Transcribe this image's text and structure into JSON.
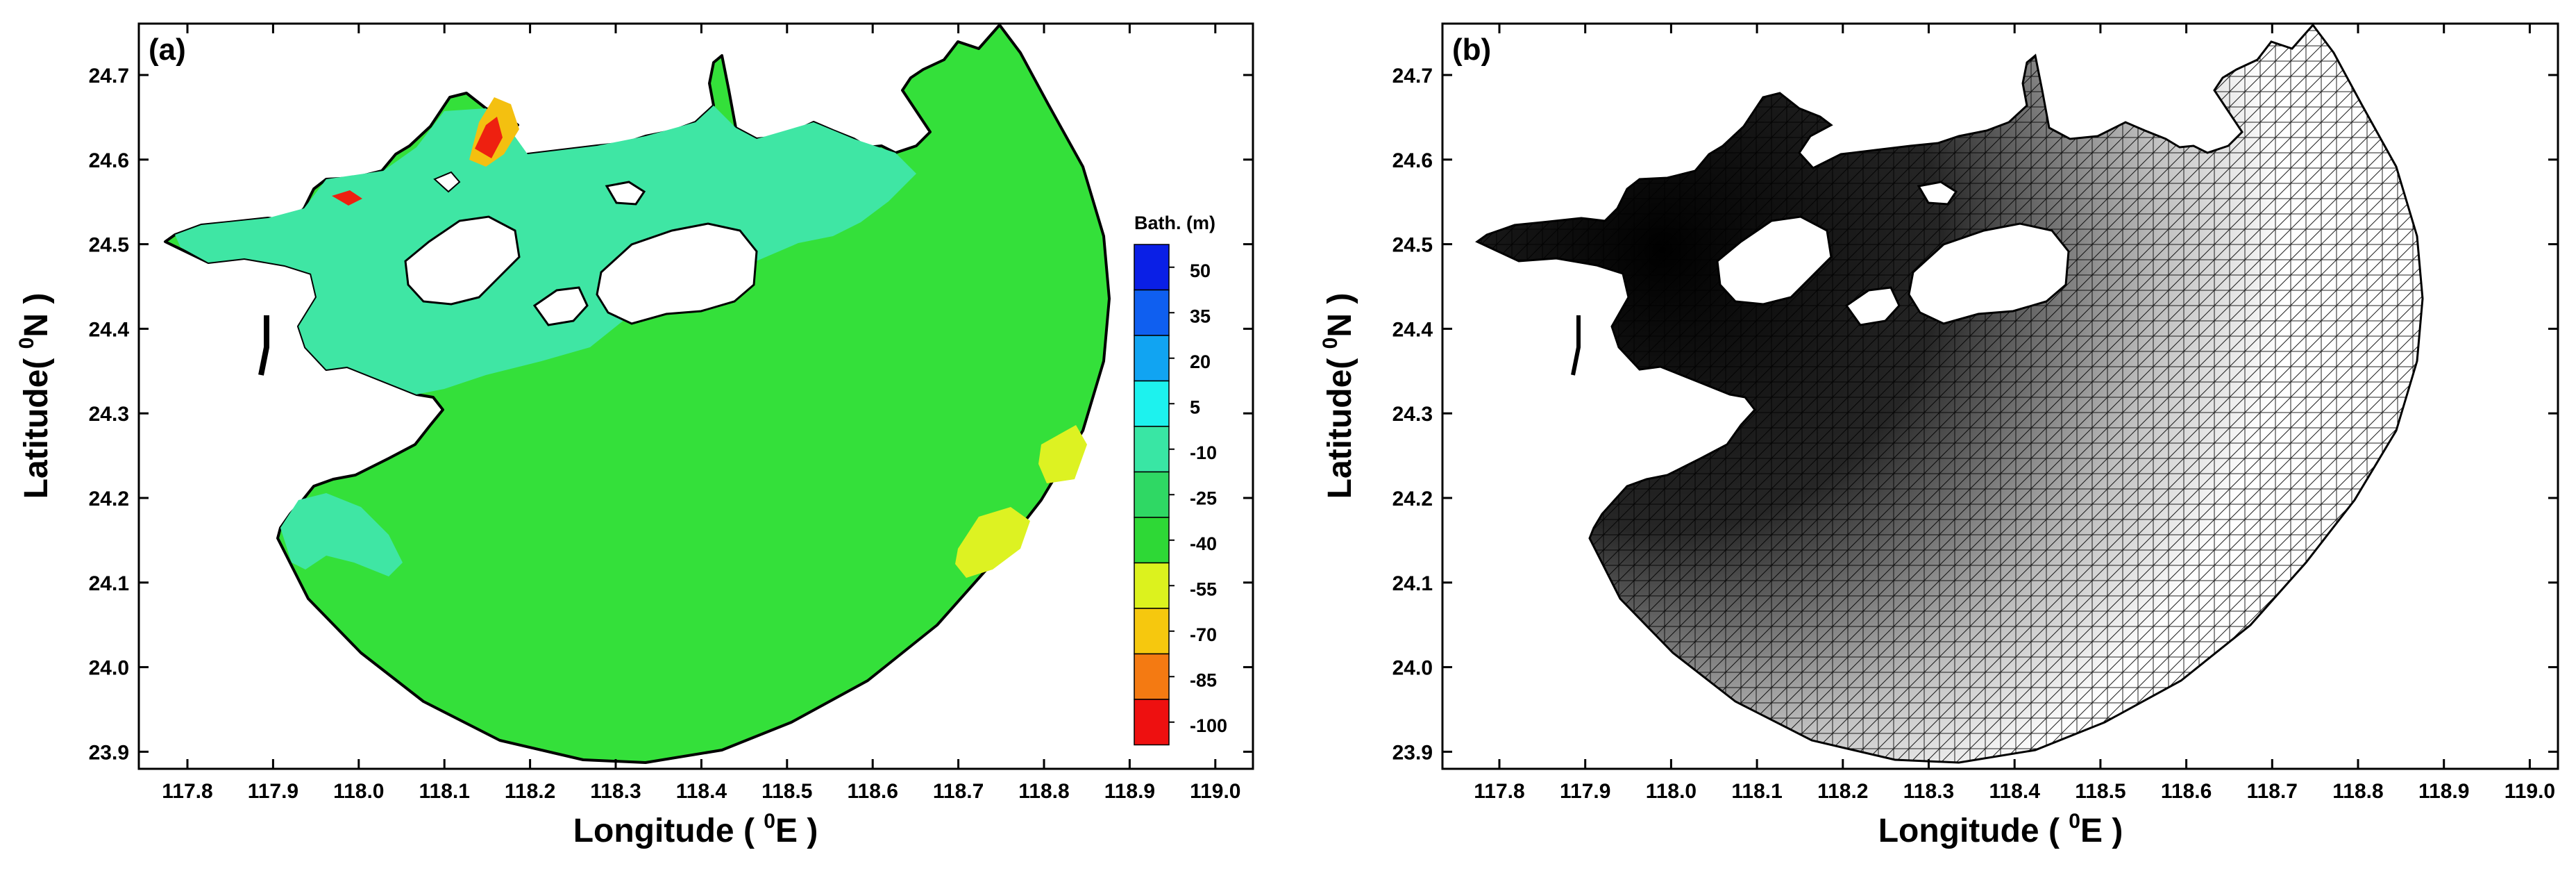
{
  "panels": [
    {
      "id": "a",
      "label": "(a)",
      "xlabel": "Longitude ( ⁰E )",
      "ylabel": "Latitude( ⁰N )",
      "xticks": [
        "117.8",
        "117.9",
        "118.0",
        "118.1",
        "118.2",
        "118.3",
        "118.4",
        "118.5",
        "118.6",
        "118.7",
        "118.8",
        "118.9",
        "119.0"
      ],
      "yticks": [
        "24.7",
        "24.6",
        "24.5",
        "24.4",
        "24.3",
        "24.2",
        "24.1",
        "24.0",
        "23.9"
      ]
    },
    {
      "id": "b",
      "label": "(b)",
      "xlabel": "Longitude ( ⁰E )",
      "ylabel": "Latitude( ⁰N )",
      "xticks": [
        "117.8",
        "117.9",
        "118.0",
        "118.1",
        "118.2",
        "118.3",
        "118.4",
        "118.5",
        "118.6",
        "118.7",
        "118.8",
        "118.9",
        "119.0"
      ],
      "yticks": [
        "24.7",
        "24.6",
        "24.5",
        "24.4",
        "24.3",
        "24.2",
        "24.1",
        "24.0",
        "23.9"
      ]
    }
  ],
  "legend": {
    "title": "Bath. (m)",
    "labels": [
      "50",
      "35",
      "20",
      "5",
      "-10",
      "-25",
      "-40",
      "-55",
      "-70",
      "-85",
      "-100"
    ],
    "colors": [
      "#0a1fe6",
      "#0f5ff0",
      "#11a4f2",
      "#1df2ee",
      "#39e6a4",
      "#2fd864",
      "#2ed836",
      "#dcf21e",
      "#f6c80e",
      "#f47a12",
      "#ee1010"
    ]
  },
  "colors": {
    "ocean_green": "#34e03a",
    "shallow_teal": "#3fe6a4",
    "deep_yellow": "#ddf222",
    "mesh_dark": "#111111"
  }
}
